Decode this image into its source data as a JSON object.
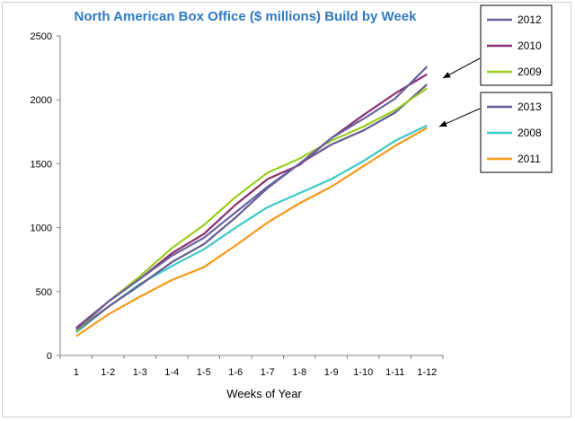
{
  "chart_data": {
    "type": "line",
    "title": "North American Box Office ($ millions) Build by Week",
    "xlabel": "Weeks of Year",
    "ylabel": "",
    "ylim": [
      0,
      2500
    ],
    "yticks": [
      0,
      500,
      1000,
      1500,
      2000,
      2500
    ],
    "categories": [
      "1",
      "1-2",
      "1-3",
      "1-4",
      "1-5",
      "1-6",
      "1-7",
      "1-8",
      "1-9",
      "1-10",
      "1-11",
      "1-12"
    ],
    "grid": false,
    "series": [
      {
        "name": "2012",
        "color": "#6b63a0",
        "values": [
          200,
          420,
          600,
          780,
          920,
          1120,
          1320,
          1500,
          1700,
          1850,
          2010,
          2260
        ]
      },
      {
        "name": "2010",
        "color": "#8b2f6e",
        "values": [
          215,
          420,
          600,
          800,
          950,
          1180,
          1380,
          1490,
          1700,
          1880,
          2050,
          2200
        ]
      },
      {
        "name": "2009",
        "color": "#9acd1e",
        "values": [
          190,
          420,
          620,
          840,
          1020,
          1240,
          1430,
          1540,
          1680,
          1790,
          1920,
          2090
        ]
      },
      {
        "name": "2013",
        "color": "#675a92",
        "values": [
          190,
          380,
          550,
          730,
          870,
          1080,
          1310,
          1500,
          1650,
          1760,
          1900,
          2120
        ]
      },
      {
        "name": "2008",
        "color": "#3cc9c9",
        "values": [
          180,
          380,
          560,
          700,
          830,
          1000,
          1160,
          1270,
          1380,
          1520,
          1680,
          1800
        ]
      },
      {
        "name": "2011",
        "color": "#f59a1b",
        "values": [
          150,
          320,
          460,
          590,
          690,
          860,
          1040,
          1190,
          1320,
          1480,
          1640,
          1780
        ]
      }
    ],
    "legend": {
      "placement": "right",
      "groups": [
        {
          "entries": [
            "2012",
            "2010",
            "2009"
          ]
        },
        {
          "entries": [
            "2013",
            "2008",
            "2011"
          ]
        }
      ]
    }
  }
}
